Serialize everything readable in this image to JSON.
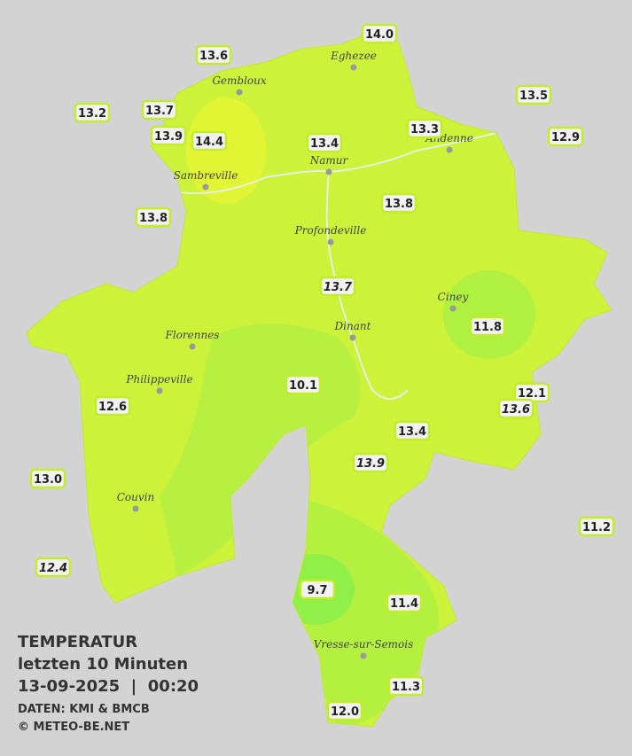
{
  "map": {
    "title": "TEMPERATUR",
    "subtitle": "letzten 10 Minuten",
    "timestamp": "13-09-2025  |  00:20",
    "source": "DATEN: KMI & BMCB",
    "copyright": "© METEO-BE.NET",
    "cities": [
      "Eghezee",
      "Gembloux",
      "Andenne",
      "Namur",
      "Sambreville",
      "Profondeville",
      "Ciney",
      "Dinant",
      "Florennes",
      "Philippeville",
      "Couvin",
      "Vresse-sur-Semois"
    ],
    "stations": [
      "14.0",
      "13.6",
      "13.5",
      "13.2",
      "13.7",
      "13.3",
      "13.9",
      "14.4",
      "13.4",
      "12.9",
      "13.8",
      "13.8",
      "13.7",
      "11.8",
      "10.1",
      "12.1",
      "13.6",
      "12.6",
      "13.4",
      "13.9",
      "13.0",
      "11.2",
      "12.4",
      "9.7",
      "11.4",
      "11.3",
      "12.0"
    ]
  }
}
